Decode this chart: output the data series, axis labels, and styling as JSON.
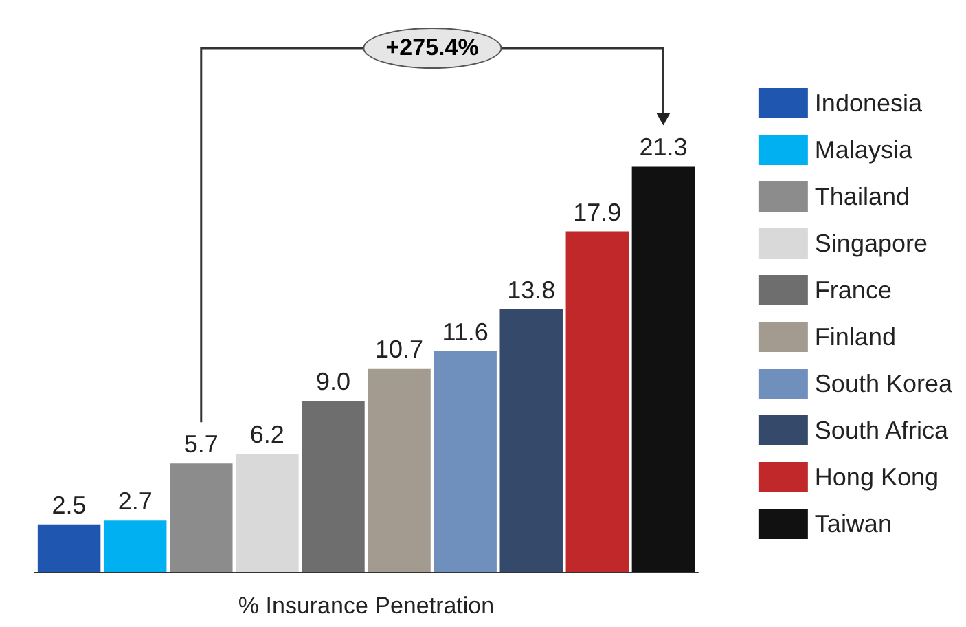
{
  "chart_data": {
    "type": "bar",
    "xlabel": "% Insurance Penetration",
    "categories": [
      null
    ],
    "series": [
      {
        "name": "Indonesia",
        "color": "#1f56b0",
        "values": [
          2.5
        ],
        "value_labels": [
          "2.5"
        ]
      },
      {
        "name": "Malaysia",
        "color": "#00b0f0",
        "values": [
          2.7
        ],
        "value_labels": [
          "2.7"
        ]
      },
      {
        "name": "Thailand",
        "color": "#8c8c8c",
        "values": [
          5.7
        ],
        "value_labels": [
          "5.7"
        ]
      },
      {
        "name": "Singapore",
        "color": "#d9d9d9",
        "values": [
          6.2
        ],
        "value_labels": [
          "6.2"
        ]
      },
      {
        "name": "France",
        "color": "#6e6e6e",
        "values": [
          9.0
        ],
        "value_labels": [
          "9.0"
        ]
      },
      {
        "name": "Finland",
        "color": "#a39b8f",
        "values": [
          10.7
        ],
        "value_labels": [
          "10.7"
        ]
      },
      {
        "name": "South Korea",
        "color": "#6f8fbd",
        "values": [
          11.6
        ],
        "value_labels": [
          "11.6"
        ]
      },
      {
        "name": "South Africa",
        "color": "#354a6b",
        "values": [
          13.8
        ],
        "value_labels": [
          "13.8"
        ]
      },
      {
        "name": "Hong Kong",
        "color": "#c0282a",
        "values": [
          17.9
        ],
        "value_labels": [
          "17.9"
        ]
      },
      {
        "name": "Taiwan",
        "color": "#111111",
        "values": [
          21.3
        ],
        "value_labels": [
          "21.3"
        ]
      }
    ],
    "legend": "right",
    "annotations": [
      "+275.4%"
    ]
  }
}
